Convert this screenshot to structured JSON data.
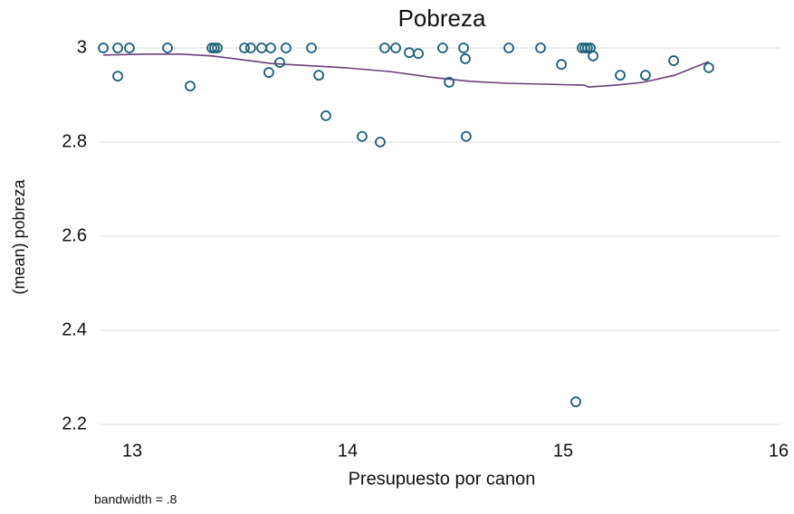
{
  "chart_data": {
    "type": "scatter",
    "title": "Pobreza",
    "xlabel": "Presupuesto por canon",
    "ylabel": "(mean) pobreza",
    "note": "bandwidth = .8",
    "xlim": [
      12.85,
      16.0
    ],
    "ylim": [
      2.19,
      3.02
    ],
    "xticks": [
      13,
      14,
      15,
      16
    ],
    "yticks": [
      2.2,
      2.4,
      2.6,
      2.8,
      3
    ],
    "grid": true,
    "points": {
      "color": "#1a5f78",
      "x": [
        12.866,
        12.933,
        12.987,
        12.933,
        13.164,
        13.269,
        13.37,
        13.382,
        13.395,
        13.521,
        13.55,
        13.601,
        13.643,
        13.634,
        13.685,
        13.714,
        13.832,
        13.866,
        13.899,
        14.067,
        14.151,
        14.172,
        14.223,
        14.286,
        14.328,
        14.441,
        14.471,
        14.538,
        14.546,
        14.55,
        14.748,
        14.895,
        14.992,
        15.059,
        15.088,
        15.101,
        15.113,
        15.126,
        15.139,
        15.265,
        15.382,
        15.513,
        15.676
      ],
      "y": [
        3,
        3,
        3,
        2.94,
        3,
        2.919,
        3,
        3,
        3,
        3,
        3,
        3,
        3,
        2.948,
        2.969,
        3,
        3,
        2.942,
        2.856,
        2.812,
        2.8,
        3,
        3,
        2.99,
        2.988,
        3,
        2.927,
        3,
        2.977,
        2.812,
        3,
        3,
        2.965,
        2.248,
        3,
        3,
        3,
        3,
        2.983,
        2.942,
        2.942,
        2.973,
        2.958
      ]
    },
    "fit": {
      "color": "#6a3d7a",
      "x": [
        12.866,
        13.059,
        13.227,
        13.37,
        13.647,
        13.983,
        14.193,
        14.403,
        14.571,
        14.739,
        14.908,
        15.097,
        15.118,
        15.244,
        15.37,
        15.517,
        15.676
      ],
      "y": [
        2.985,
        2.987,
        2.987,
        2.983,
        2.967,
        2.958,
        2.95,
        2.937,
        2.929,
        2.925,
        2.923,
        2.921,
        2.917,
        2.921,
        2.927,
        2.942,
        2.971
      ]
    }
  }
}
